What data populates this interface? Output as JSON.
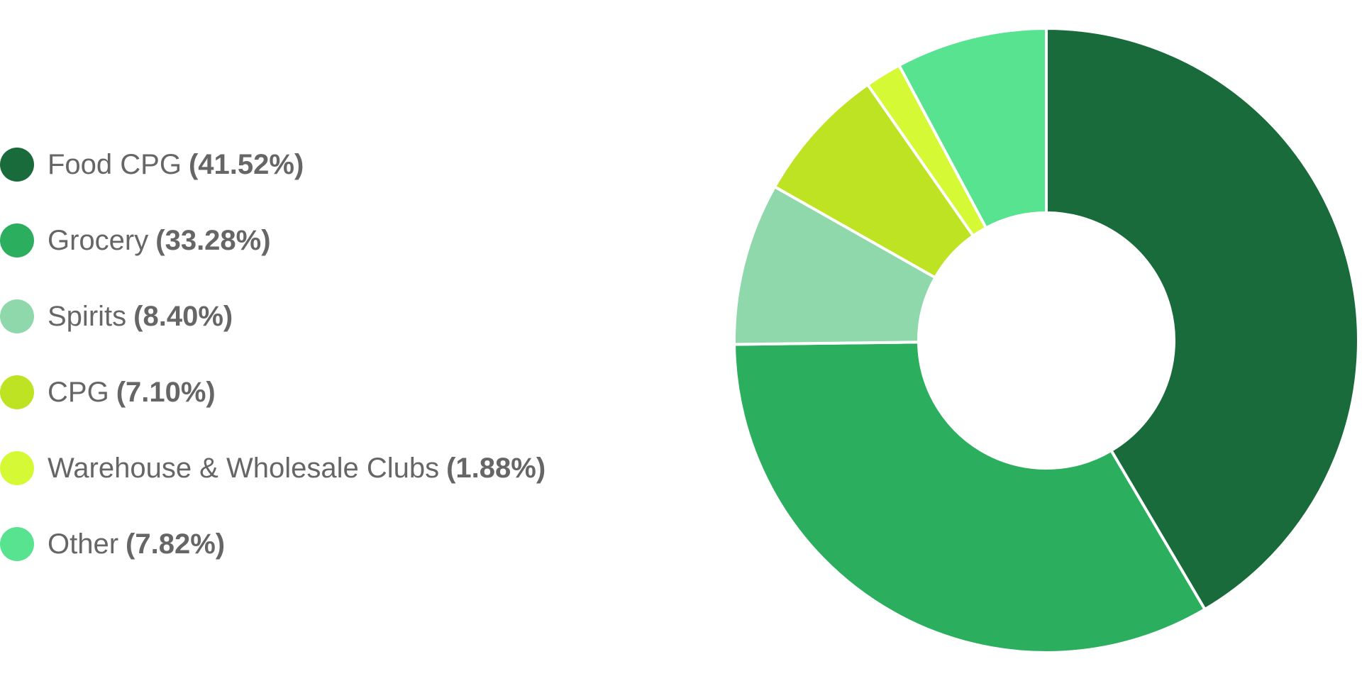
{
  "chart_data": {
    "type": "pie",
    "donut": true,
    "title": "",
    "legend_position": "left",
    "series": [
      {
        "name": "Food CPG",
        "value": 41.52,
        "value_label": "(41.52%)",
        "color": "#1A6B3B"
      },
      {
        "name": "Grocery",
        "value": 33.28,
        "value_label": "(33.28%)",
        "color": "#2BAF5F"
      },
      {
        "name": "Spirits",
        "value": 8.4,
        "value_label": "(8.40%)",
        "color": "#8ED8AC"
      },
      {
        "name": "CPG",
        "value": 7.1,
        "value_label": "(7.10%)",
        "color": "#BDE322"
      },
      {
        "name": "Warehouse & Wholesale Clubs",
        "value": 1.88,
        "value_label": "(1.88%)",
        "color": "#D5F934"
      },
      {
        "name": "Other",
        "value": 7.82,
        "value_label": "(7.82%)",
        "color": "#57E390"
      }
    ]
  }
}
